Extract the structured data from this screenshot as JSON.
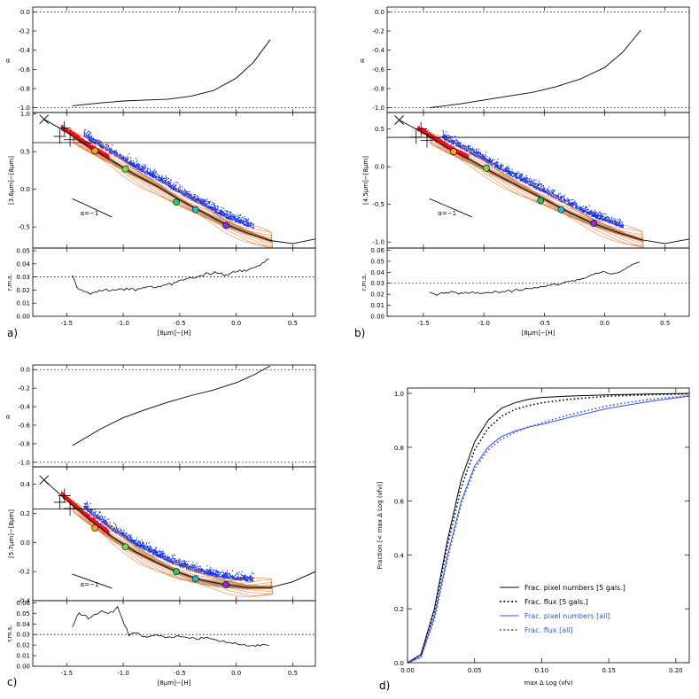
{
  "colors": {
    "red": "#ee1111",
    "blue": "#1133ee",
    "orange": "#e8732a",
    "black": "#000000",
    "legend_blue": "#3355ee"
  },
  "chart_data": [
    {
      "id": "a",
      "type": "line",
      "panel_label": "a)",
      "xlabel": "[8μm]−[H]",
      "xlim": [
        -1.8,
        0.7
      ],
      "xticks": [
        -1.5,
        -1.0,
        -0.5,
        0.0,
        0.5
      ],
      "xtick_labels": [
        "-1.5",
        "-1.0",
        "-0.5",
        "0.0",
        "0.5"
      ],
      "alpha": {
        "ylabel": "α",
        "ylim": [
          -1.05,
          0.05
        ],
        "yticks": [
          0.0,
          -0.2,
          -0.4,
          -0.6,
          -0.8,
          -1.0
        ],
        "ytick_labels": [
          "0.0",
          "-0.2",
          "-0.4",
          "-0.6",
          "-0.8",
          "-1.0"
        ],
        "x": [
          -1.45,
          -1.2,
          -1.0,
          -0.8,
          -0.6,
          -0.4,
          -0.2,
          0.0,
          0.15,
          0.3
        ],
        "y": [
          -0.98,
          -0.95,
          -0.93,
          -0.92,
          -0.91,
          -0.88,
          -0.82,
          -0.69,
          -0.53,
          -0.29
        ]
      },
      "color": {
        "ylabel": "[3.6μm]−[8μm]",
        "ylim": [
          -0.78,
          1.02
        ],
        "yticks": [
          1.0,
          0.5,
          0.0,
          -0.5
        ],
        "ytick_labels": [
          "1.0",
          "0.5",
          "0.0",
          "-0.5"
        ],
        "hline": 0.62,
        "model_x": [
          -1.7,
          -1.5,
          -1.3,
          -1.1,
          -0.9,
          -0.7,
          -0.5,
          -0.3,
          -0.1,
          0.1,
          0.3,
          0.5,
          0.7
        ],
        "model_y": [
          0.93,
          0.76,
          0.56,
          0.38,
          0.2,
          0.04,
          -0.14,
          -0.3,
          -0.46,
          -0.58,
          -0.68,
          -0.72,
          -0.66
        ],
        "slope_label": "α=−1",
        "circles": [
          {
            "x": -1.25,
            "y": 0.51,
            "color": "#f5a623"
          },
          {
            "x": -0.98,
            "y": 0.27,
            "color": "#7cd64a"
          },
          {
            "x": -0.53,
            "y": -0.17,
            "color": "#22cc66"
          },
          {
            "x": -0.36,
            "y": -0.27,
            "color": "#22bbcc"
          },
          {
            "x": -0.09,
            "y": -0.48,
            "color": "#8a2be2"
          }
        ]
      },
      "rms": {
        "ylabel": "r.m.s.",
        "ylim": [
          0.0,
          0.052
        ],
        "yticks": [
          0.0,
          0.01,
          0.02,
          0.03,
          0.04,
          0.05
        ],
        "ytick_labels": [
          "0.00",
          "0.01",
          "0.02",
          "0.03",
          "0.04",
          "0.05"
        ],
        "hline": 0.03,
        "x": [
          -1.45,
          -1.4,
          -1.3,
          -1.2,
          -1.1,
          -1.0,
          -0.9,
          -0.8,
          -0.7,
          -0.6,
          -0.5,
          -0.4,
          -0.3,
          -0.2,
          -0.1,
          0.0,
          0.1,
          0.2,
          0.3
        ],
        "y": [
          0.031,
          0.02,
          0.018,
          0.019,
          0.02,
          0.021,
          0.02,
          0.022,
          0.023,
          0.024,
          0.027,
          0.029,
          0.031,
          0.033,
          0.032,
          0.034,
          0.035,
          0.039,
          0.044
        ]
      }
    },
    {
      "id": "b",
      "type": "line",
      "panel_label": "b)",
      "xlabel": "[8μm]−[H]",
      "xlim": [
        -1.8,
        0.7
      ],
      "xticks": [
        -1.5,
        -1.0,
        -0.5,
        0.0,
        0.5
      ],
      "xtick_labels": [
        "-1.5",
        "-1.0",
        "-0.5",
        "0.0",
        "0.5"
      ],
      "alpha": {
        "ylabel": "α",
        "ylim": [
          -1.05,
          0.05
        ],
        "yticks": [
          0.0,
          -0.2,
          -0.4,
          -0.6,
          -0.8,
          -1.0
        ],
        "ytick_labels": [
          "0.0",
          "-0.2",
          "-0.4",
          "-0.6",
          "-0.8",
          "-1.0"
        ],
        "x": [
          -1.45,
          -1.2,
          -1.0,
          -0.8,
          -0.6,
          -0.4,
          -0.2,
          0.0,
          0.15,
          0.3
        ],
        "y": [
          -1.0,
          -0.96,
          -0.92,
          -0.88,
          -0.84,
          -0.78,
          -0.7,
          -0.58,
          -0.42,
          -0.19
        ]
      },
      "color": {
        "ylabel": "[4.5μm]−[8μm]",
        "ylim": [
          -1.08,
          0.72
        ],
        "yticks": [
          0.5,
          0.0,
          -0.5,
          -1.0
        ],
        "ytick_labels": [
          "0.5",
          "0.0",
          "-0.5",
          "-1.0"
        ],
        "hline": 0.39,
        "model_x": [
          -1.7,
          -1.5,
          -1.3,
          -1.1,
          -0.9,
          -0.7,
          -0.5,
          -0.3,
          -0.1,
          0.1,
          0.3,
          0.5,
          0.7
        ],
        "model_y": [
          0.62,
          0.45,
          0.25,
          0.08,
          -0.1,
          -0.27,
          -0.43,
          -0.6,
          -0.75,
          -0.87,
          -0.97,
          -1.02,
          -0.96
        ],
        "slope_label": "α=−1",
        "circles": [
          {
            "x": -1.25,
            "y": 0.2,
            "color": "#f5a623"
          },
          {
            "x": -0.98,
            "y": -0.02,
            "color": "#7cd64a"
          },
          {
            "x": -0.53,
            "y": -0.45,
            "color": "#22cc66"
          },
          {
            "x": -0.36,
            "y": -0.57,
            "color": "#22bbcc"
          },
          {
            "x": -0.09,
            "y": -0.75,
            "color": "#8a2be2"
          }
        ]
      },
      "rms": {
        "ylabel": "r.m.s.",
        "ylim": [
          0.0,
          0.062
        ],
        "yticks": [
          0.0,
          0.01,
          0.02,
          0.03,
          0.04,
          0.05,
          0.06
        ],
        "ytick_labels": [
          "0.00",
          "0.01",
          "0.02",
          "0.03",
          "0.04",
          "0.05",
          "0.06"
        ],
        "hline": 0.03,
        "x": [
          -1.45,
          -1.4,
          -1.3,
          -1.2,
          -1.1,
          -1.0,
          -0.9,
          -0.8,
          -0.7,
          -0.6,
          -0.5,
          -0.4,
          -0.3,
          -0.2,
          -0.1,
          0.0,
          0.1,
          0.2,
          0.3
        ],
        "y": [
          0.022,
          0.02,
          0.022,
          0.021,
          0.022,
          0.021,
          0.022,
          0.023,
          0.024,
          0.026,
          0.027,
          0.029,
          0.031,
          0.034,
          0.038,
          0.04,
          0.039,
          0.045,
          0.05
        ]
      }
    },
    {
      "id": "c",
      "type": "line",
      "panel_label": "c)",
      "xlabel": "[8μm]−[H]",
      "xlim": [
        -1.8,
        0.7
      ],
      "xticks": [
        -1.5,
        -1.0,
        -0.5,
        0.0,
        0.5
      ],
      "xtick_labels": [
        "-1.5",
        "-1.0",
        "-0.5",
        "0.0",
        "0.5"
      ],
      "alpha": {
        "ylabel": "α",
        "ylim": [
          -1.05,
          0.05
        ],
        "yticks": [
          0.0,
          -0.2,
          -0.4,
          -0.6,
          -0.8,
          -1.0
        ],
        "ytick_labels": [
          "0.0",
          "-0.2",
          "-0.4",
          "-0.6",
          "-0.8",
          "-1.0"
        ],
        "x": [
          -1.45,
          -1.2,
          -1.0,
          -0.8,
          -0.6,
          -0.4,
          -0.2,
          0.0,
          0.15,
          0.3
        ],
        "y": [
          -0.82,
          -0.64,
          -0.52,
          -0.43,
          -0.35,
          -0.28,
          -0.22,
          -0.14,
          -0.06,
          0.04
        ]
      },
      "color": {
        "ylabel": "[5.7μm]−[8μm]",
        "ylim": [
          -0.4,
          0.52
        ],
        "yticks": [
          0.4,
          0.2,
          0.0,
          -0.2,
          -0.4
        ],
        "ytick_labels": [
          "0.4",
          "0.2",
          "0.0",
          "-0.2",
          "-0.4"
        ],
        "hline": 0.23,
        "model_x": [
          -1.7,
          -1.5,
          -1.3,
          -1.1,
          -0.9,
          -0.7,
          -0.5,
          -0.3,
          -0.1,
          0.1,
          0.3,
          0.5,
          0.7
        ],
        "model_y": [
          0.43,
          0.29,
          0.16,
          0.04,
          -0.06,
          -0.14,
          -0.21,
          -0.26,
          -0.29,
          -0.31,
          -0.31,
          -0.27,
          -0.2
        ],
        "slope_label": "α=−1",
        "circles": [
          {
            "x": -1.25,
            "y": 0.1,
            "color": "#f5a623"
          },
          {
            "x": -0.98,
            "y": -0.03,
            "color": "#7cd64a"
          },
          {
            "x": -0.53,
            "y": -0.2,
            "color": "#22cc66"
          },
          {
            "x": -0.36,
            "y": -0.25,
            "color": "#22bbcc"
          },
          {
            "x": -0.09,
            "y": -0.29,
            "color": "#8a2be2"
          }
        ]
      },
      "rms": {
        "ylabel": "r.m.s.",
        "ylim": [
          0.0,
          0.062
        ],
        "yticks": [
          0.0,
          0.01,
          0.02,
          0.03,
          0.04,
          0.05,
          0.06
        ],
        "ytick_labels": [
          "0.00",
          "0.01",
          "0.02",
          "0.03",
          "0.04",
          "0.05",
          "0.06"
        ],
        "hline": 0.03,
        "x": [
          -1.45,
          -1.4,
          -1.3,
          -1.2,
          -1.1,
          -1.05,
          -1.0,
          -0.95,
          -0.9,
          -0.8,
          -0.7,
          -0.6,
          -0.5,
          -0.4,
          -0.3,
          -0.2,
          -0.1,
          0.0,
          0.1,
          0.2,
          0.3
        ],
        "y": [
          0.038,
          0.05,
          0.045,
          0.052,
          0.05,
          0.056,
          0.042,
          0.03,
          0.032,
          0.028,
          0.029,
          0.027,
          0.028,
          0.026,
          0.027,
          0.025,
          0.023,
          0.022,
          0.019,
          0.02,
          0.02
        ]
      }
    },
    {
      "id": "d",
      "type": "line",
      "panel_label": "d)",
      "xlabel": "max Δ Log (νfν)",
      "ylabel": "Fraction [< max Δ Log (νfν)]",
      "xlim": [
        0.0,
        0.21
      ],
      "ylim": [
        0.0,
        1.02
      ],
      "xticks": [
        0.0,
        0.05,
        0.1,
        0.15,
        0.2
      ],
      "xtick_labels": [
        "0.00",
        "0.05",
        "0.10",
        "0.15",
        "0.20"
      ],
      "yticks": [
        0.0,
        0.2,
        0.4,
        0.6,
        0.8,
        1.0
      ],
      "ytick_labels": [
        "0.0",
        "0.2",
        "0.4",
        "0.6",
        "0.8",
        "1.0"
      ],
      "legend_position": "lower-right",
      "series": [
        {
          "name": "Frac. pixel numbers [5 gals.]",
          "color": "#000000",
          "dash": "solid",
          "x": [
            0.0,
            0.01,
            0.02,
            0.03,
            0.04,
            0.05,
            0.06,
            0.07,
            0.08,
            0.09,
            0.1,
            0.12,
            0.15,
            0.18,
            0.21
          ],
          "y": [
            0.0,
            0.03,
            0.2,
            0.46,
            0.68,
            0.82,
            0.9,
            0.945,
            0.965,
            0.978,
            0.985,
            0.99,
            0.995,
            0.998,
            1.0
          ]
        },
        {
          "name": "Frac. flux [5 gals.]",
          "color": "#000000",
          "dash": "dot",
          "x": [
            0.0,
            0.01,
            0.02,
            0.03,
            0.04,
            0.05,
            0.06,
            0.07,
            0.08,
            0.09,
            0.1,
            0.12,
            0.15,
            0.18,
            0.21
          ],
          "y": [
            0.0,
            0.03,
            0.19,
            0.44,
            0.65,
            0.79,
            0.87,
            0.915,
            0.94,
            0.955,
            0.965,
            0.978,
            0.99,
            0.995,
            0.998
          ]
        },
        {
          "name": "Frac. pixel numbers [all]",
          "color": "#3355ee",
          "dash": "solid",
          "x": [
            0.0,
            0.01,
            0.02,
            0.03,
            0.04,
            0.05,
            0.06,
            0.07,
            0.08,
            0.09,
            0.1,
            0.12,
            0.15,
            0.18,
            0.21
          ],
          "y": [
            0.0,
            0.02,
            0.17,
            0.4,
            0.6,
            0.73,
            0.8,
            0.84,
            0.86,
            0.875,
            0.885,
            0.91,
            0.945,
            0.97,
            0.99
          ]
        },
        {
          "name": "Frac. flux [all]",
          "color": "#3355ee",
          "dash": "dot",
          "x": [
            0.0,
            0.01,
            0.02,
            0.03,
            0.04,
            0.05,
            0.06,
            0.07,
            0.08,
            0.09,
            0.1,
            0.12,
            0.15,
            0.18,
            0.21
          ],
          "y": [
            0.0,
            0.02,
            0.16,
            0.39,
            0.59,
            0.72,
            0.79,
            0.83,
            0.855,
            0.875,
            0.89,
            0.92,
            0.955,
            0.978,
            0.992
          ]
        }
      ]
    }
  ]
}
